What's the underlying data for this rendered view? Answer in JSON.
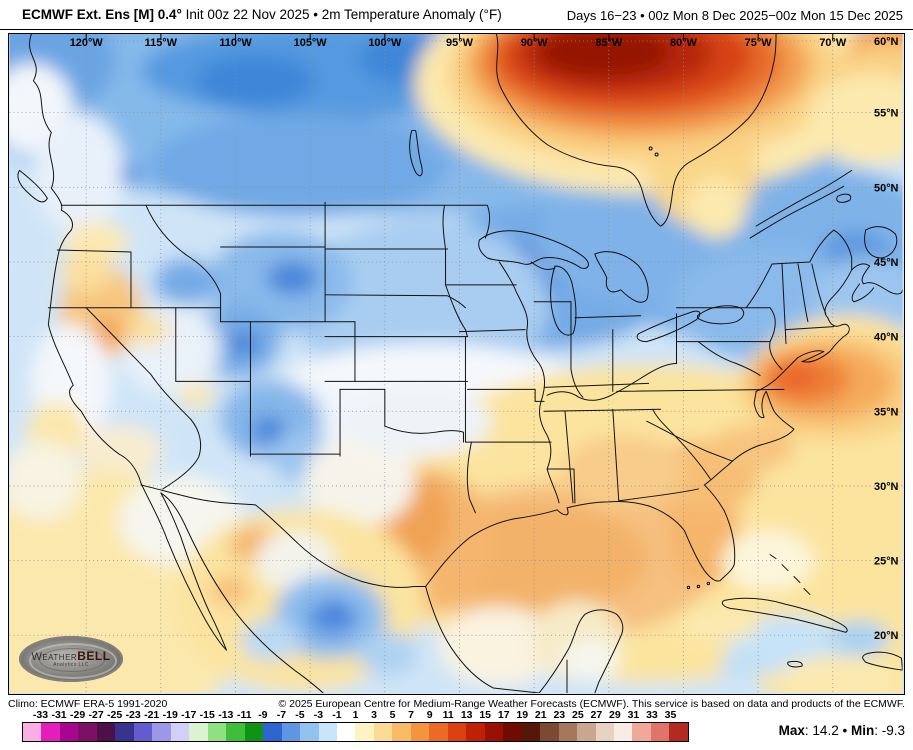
{
  "header": {
    "title_model": "ECMWF Ext. Ens [M] 0.4°",
    "title_init": " Init 00z 22 Nov 2025 • 2m Temperature Anomaly (°F)",
    "title_valid": "Days 16−23 • 00z Mon 8 Dec 2025−00z Mon 15 Dec 2025"
  },
  "map": {
    "lon_labels": [
      "120°W",
      "115°W",
      "110°W",
      "105°W",
      "100°W",
      "95°W",
      "90°W",
      "85°W",
      "80°W",
      "75°W",
      "70°W"
    ],
    "lat_labels": [
      "60°N",
      "55°N",
      "50°N",
      "45°N",
      "40°N",
      "35°N",
      "30°N",
      "25°N",
      "20°N"
    ],
    "logo": {
      "weather": "Weather",
      "bell": "BELL",
      "subtitle": "Analytics LLC"
    }
  },
  "footer": {
    "climo": "Climo: ECMWF ERA-5 1991-2020",
    "copyright": "© 2025 European Centre for Medium-Range Weather Forecasts (ECMWF). This service is based on data and products of the ECMWF.",
    "max_label": "Max",
    "max_value": "14.2",
    "separator": "•",
    "min_label": "Min",
    "min_value": "-9.3"
  },
  "colorbar": {
    "unit": "°F anomaly",
    "ticks": [
      "-33",
      "-31",
      "-29",
      "-27",
      "-25",
      "-23",
      "-21",
      "-19",
      "-17",
      "-15",
      "-13",
      "-11",
      "-9",
      "-7",
      "-5",
      "-3",
      "-1",
      "1",
      "3",
      "5",
      "7",
      "9",
      "11",
      "13",
      "15",
      "17",
      "19",
      "21",
      "23",
      "25",
      "27",
      "29",
      "31",
      "33",
      "35"
    ],
    "colors": [
      "#fbaee3",
      "#e51dbb",
      "#a9068f",
      "#7c0f66",
      "#4c1148",
      "#393390",
      "#625cce",
      "#9d97ea",
      "#d3d0f8",
      "#daf4d2",
      "#8fe080",
      "#3fbf38",
      "#0e9414",
      "#2e64cf",
      "#5e96e2",
      "#92c2f0",
      "#c9e5fa",
      "#ffffff",
      "#fdf4c4",
      "#fbdc92",
      "#f8ba64",
      "#f4953e",
      "#eb6a24",
      "#dc3f10",
      "#c02106",
      "#9a1002",
      "#700b01",
      "#541708",
      "#7c4a32",
      "#a5775c",
      "#c9a78e",
      "#e8d2c2",
      "#f8ece4",
      "#efa89a",
      "#e07468",
      "#b22a20"
    ]
  }
}
